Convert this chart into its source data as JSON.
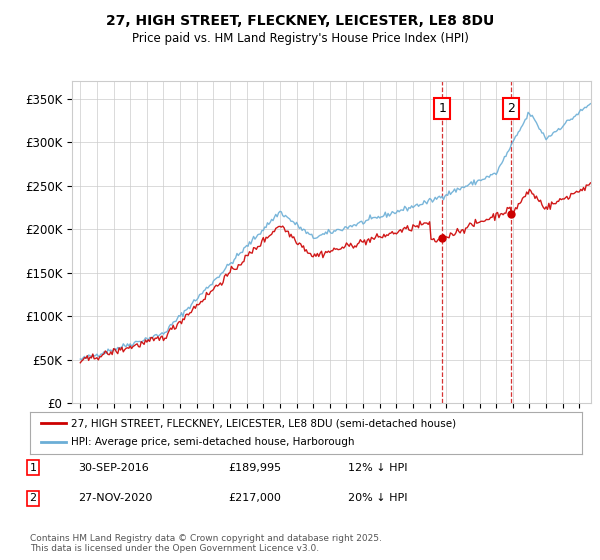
{
  "title_line1": "27, HIGH STREET, FLECKNEY, LEICESTER, LE8 8DU",
  "title_line2": "Price paid vs. HM Land Registry's House Price Index (HPI)",
  "ylabel_ticks": [
    "£0",
    "£50K",
    "£100K",
    "£150K",
    "£200K",
    "£250K",
    "£300K",
    "£350K"
  ],
  "ytick_values": [
    0,
    50000,
    100000,
    150000,
    200000,
    250000,
    300000,
    350000
  ],
  "ylim": [
    0,
    370000
  ],
  "xlim_start": 1994.5,
  "xlim_end": 2025.7,
  "hpi_color": "#6baed6",
  "price_color": "#cc0000",
  "marker1_x": 2016.75,
  "marker1_price": 189995,
  "marker1_label": "30-SEP-2016",
  "marker1_price_str": "£189,995",
  "marker1_pct": "12% ↓ HPI",
  "marker2_x": 2020.9,
  "marker2_price": 217000,
  "marker2_label": "27-NOV-2020",
  "marker2_price_str": "£217,000",
  "marker2_pct": "20% ↓ HPI",
  "legend_line1": "27, HIGH STREET, FLECKNEY, LEICESTER, LE8 8DU (semi-detached house)",
  "legend_line2": "HPI: Average price, semi-detached house, Harborough",
  "footnote": "Contains HM Land Registry data © Crown copyright and database right 2025.\nThis data is licensed under the Open Government Licence v3.0.",
  "grid_color": "#cccccc",
  "background_color": "#ffffff"
}
